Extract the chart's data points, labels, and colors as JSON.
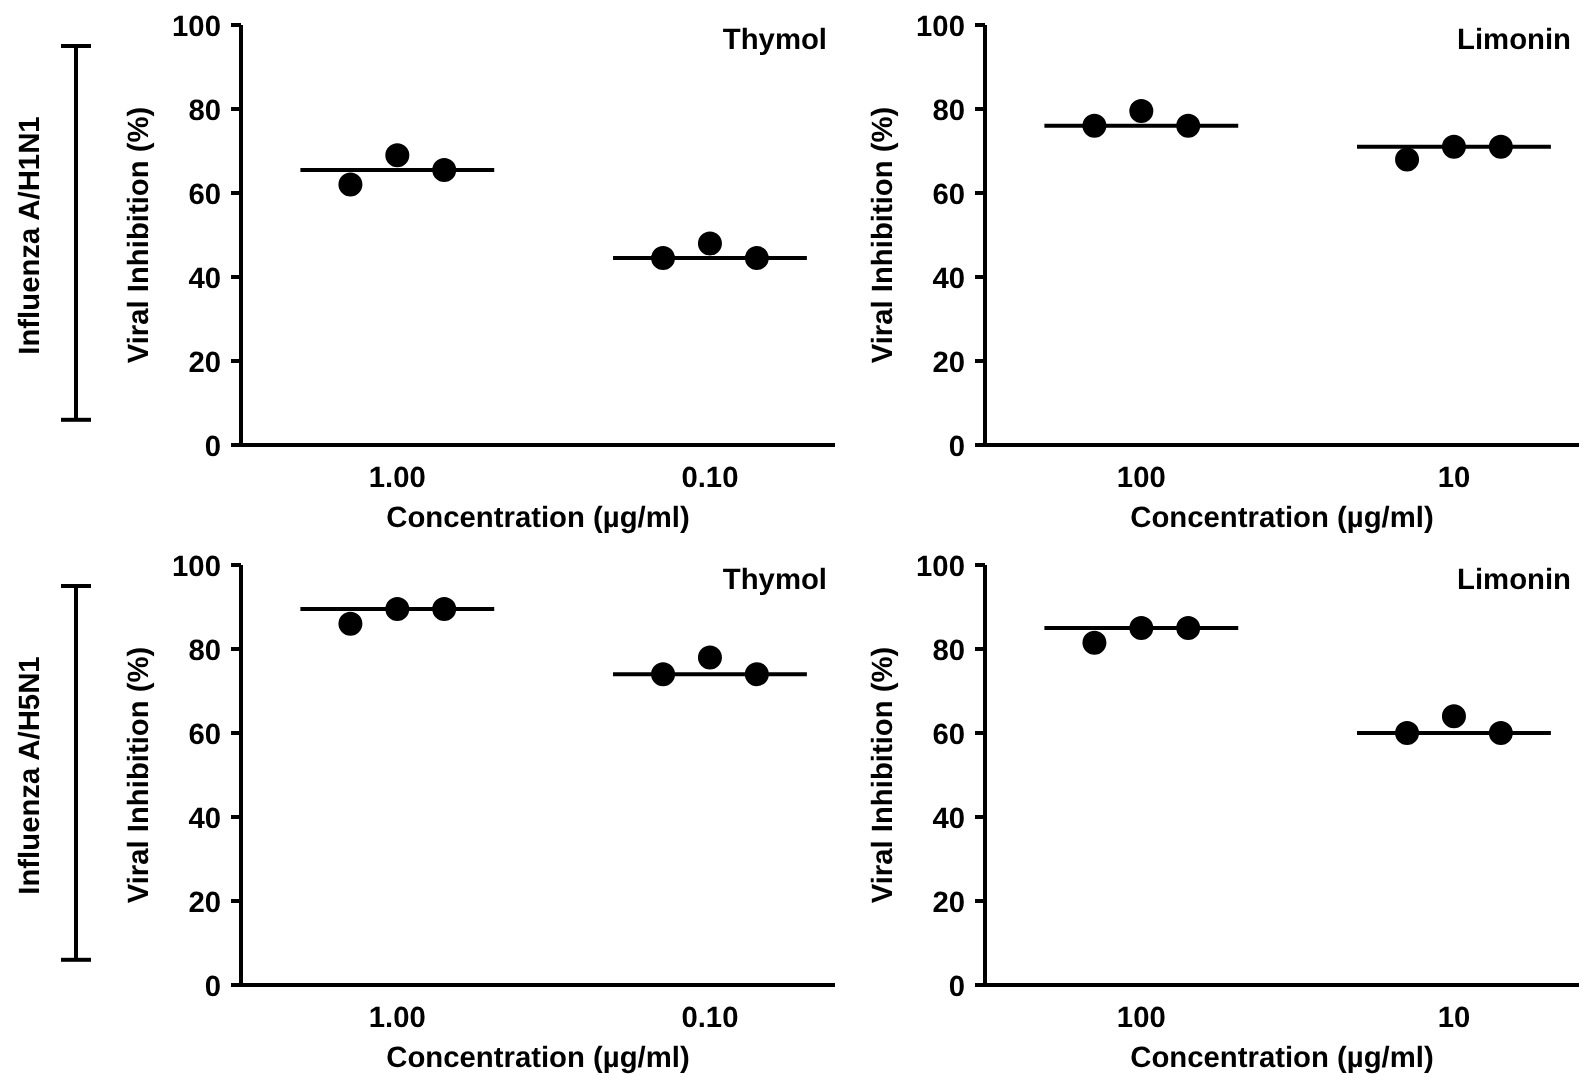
{
  "chart_data": [
    {
      "type": "scatter",
      "title": "Thymol",
      "xlabel": "Concentration (µg/ml)",
      "ylabel": "Viral Inhibition (%)",
      "annotations": [
        "Influenza A/H1N1"
      ],
      "categories": [
        "1.00",
        "0.10"
      ],
      "ylim": [
        0,
        100
      ],
      "yticks": [
        0,
        20,
        40,
        60,
        80,
        100
      ],
      "grid": false,
      "series": [
        {
          "color": "#000000",
          "marker": "circle",
          "x": [
            "1.00",
            "1.00",
            "1.00",
            "0.10",
            "0.10",
            "0.10"
          ],
          "values": [
            62,
            69,
            65.5,
            44.5,
            48,
            44.5
          ]
        },
        {
          "type": "bar",
          "color": "#000000",
          "base": [
            65.5,
            44.5
          ],
          "values": [
            0,
            0
          ]
        }
      ]
    },
    {
      "type": "scatter",
      "title": "Limonin",
      "xlabel": "Concentration (µg/ml)",
      "ylabel": "Viral Inhibition (%)",
      "categories": [
        "100",
        "10"
      ],
      "ylim": [
        0,
        100
      ],
      "yticks": [
        0,
        20,
        40,
        60,
        80,
        100
      ],
      "grid": false,
      "series": [
        {
          "color": "#000000",
          "marker": "circle",
          "x": [
            "100",
            "100",
            "100",
            "10",
            "10",
            "10"
          ],
          "values": [
            76,
            79.5,
            76,
            68,
            71,
            71
          ]
        },
        {
          "type": "bar",
          "color": "#000000",
          "base": [
            76,
            71
          ],
          "values": [
            0,
            0
          ]
        }
      ]
    },
    {
      "type": "scatter",
      "title": "Thymol",
      "xlabel": "Concentration (µg/ml)",
      "ylabel": "Viral Inhibition (%)",
      "annotations": [
        "Influenza A/H5N1"
      ],
      "categories": [
        "1.00",
        "0.10"
      ],
      "ylim": [
        0,
        100
      ],
      "yticks": [
        0,
        20,
        40,
        60,
        80,
        100
      ],
      "grid": false,
      "series": [
        {
          "color": "#000000",
          "marker": "circle",
          "x": [
            "1.00",
            "1.00",
            "1.00",
            "0.10",
            "0.10",
            "0.10"
          ],
          "values": [
            86,
            89.5,
            89.5,
            74,
            78,
            74
          ]
        },
        {
          "type": "bar",
          "color": "#000000",
          "base": [
            89.5,
            74
          ],
          "values": [
            0,
            0
          ]
        }
      ]
    },
    {
      "type": "scatter",
      "title": "Limonin",
      "xlabel": "Concentration (µg/ml)",
      "ylabel": "Viral Inhibition (%)",
      "categories": [
        "100",
        "10"
      ],
      "ylim": [
        0,
        100
      ],
      "yticks": [
        0,
        20,
        40,
        60,
        80,
        100
      ],
      "grid": false,
      "series": [
        {
          "color": "#000000",
          "marker": "circle",
          "x": [
            "100",
            "100",
            "100",
            "10",
            "10",
            "10"
          ],
          "values": [
            81.5,
            85,
            85,
            60,
            64,
            60
          ]
        },
        {
          "type": "bar",
          "color": "#000000",
          "base": [
            85,
            60
          ],
          "values": [
            0,
            0
          ]
        }
      ]
    }
  ]
}
